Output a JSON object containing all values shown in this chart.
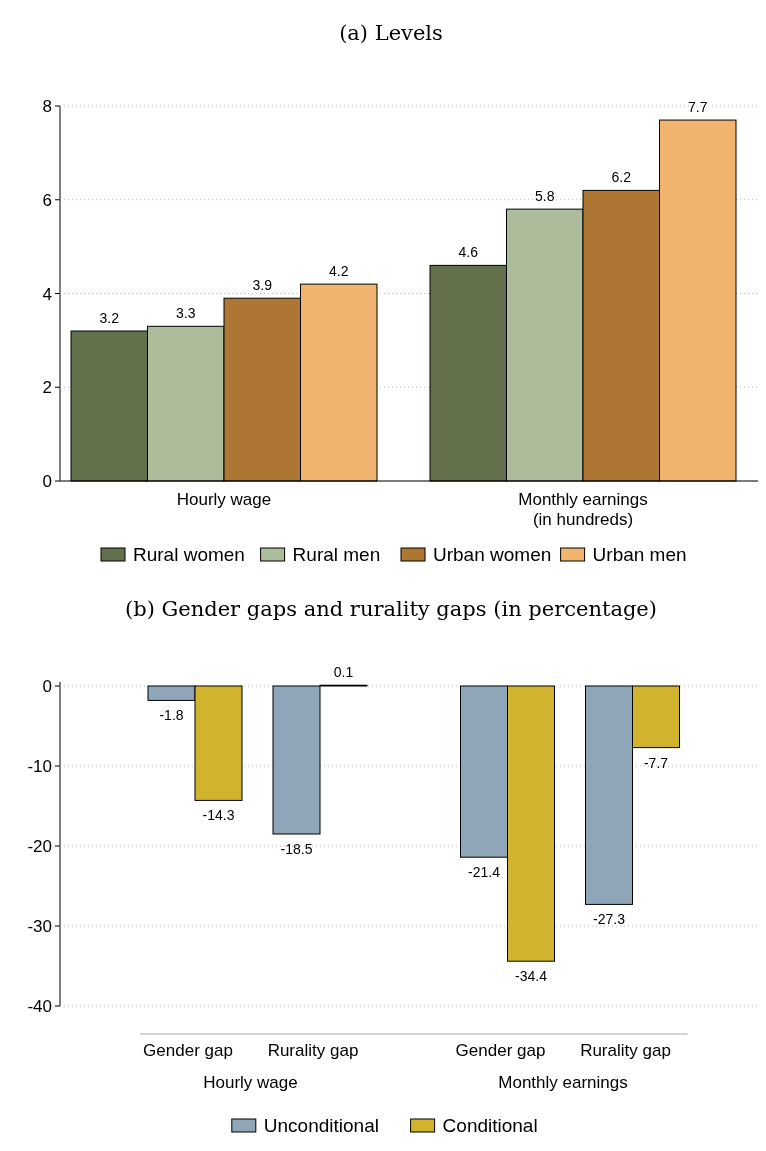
{
  "chart_data": [
    {
      "type": "bar",
      "title": "(a) Levels",
      "categories": [
        "Hourly wage",
        "Monthly earnings\n(in hundreds)"
      ],
      "series": [
        {
          "name": "Rural women",
          "color": "#62714c",
          "values": [
            3.2,
            4.6
          ]
        },
        {
          "name": "Rural men",
          "color": "#adbc9b",
          "values": [
            3.3,
            5.8
          ]
        },
        {
          "name": "Urban women",
          "color": "#ae7633",
          "values": [
            3.9,
            6.2
          ]
        },
        {
          "name": "Urban men",
          "color": "#f0b46f",
          "values": [
            4.2,
            7.7
          ]
        }
      ],
      "ylim": [
        0,
        8
      ],
      "yticks": [
        0,
        2,
        4,
        6,
        8
      ],
      "grid": "y",
      "legend": "bottom",
      "data_labels": true
    },
    {
      "type": "bar",
      "title": "(b) Gender gaps and rurality gaps (in percentage)",
      "categories": [
        "Gender gap",
        "Rurality gap",
        "Gender gap",
        "Rurality gap"
      ],
      "series": [
        {
          "name": "Unconditional",
          "color": "#8fa6b9",
          "values": [
            -1.8,
            -18.5,
            -21.4,
            -27.3
          ]
        },
        {
          "name": "Conditional",
          "color": "#d2b32e",
          "values": [
            -14.3,
            0.1,
            -34.4,
            -7.7
          ]
        }
      ],
      "ylim": [
        -40,
        0.5
      ],
      "yticks": [
        -40,
        -30,
        -20,
        -10,
        0
      ],
      "grid": "y",
      "legend": "bottom",
      "data_labels": true,
      "annotations": [
        "Hourly wage",
        "Monthly earnings"
      ]
    }
  ]
}
